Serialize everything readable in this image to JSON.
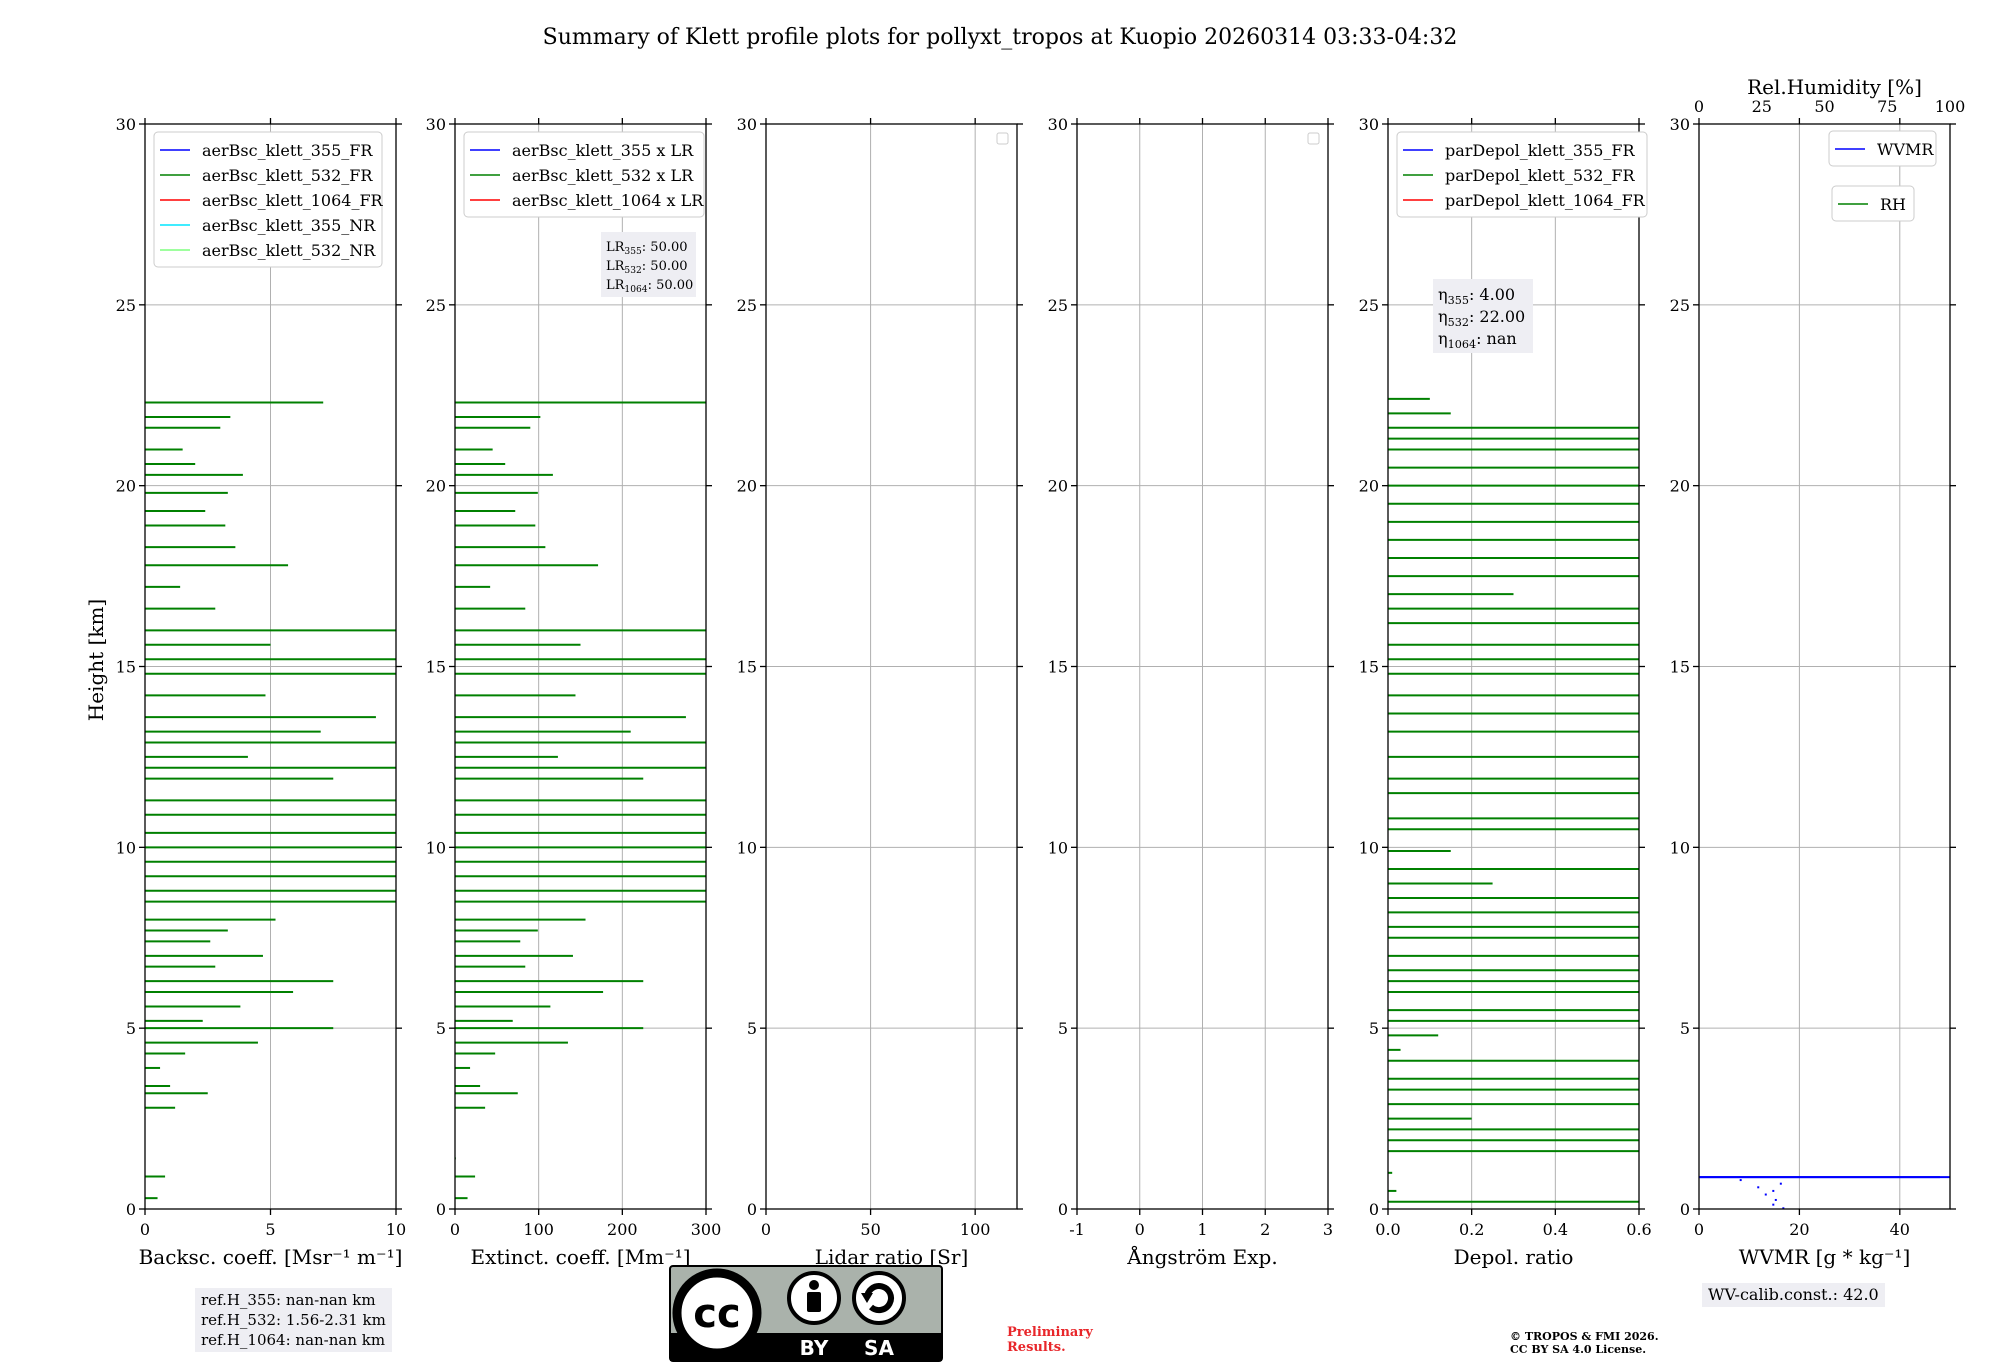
{
  "chart_data": {
    "type": "line",
    "title": "Summary of Klett profile plots for pollyxt_tropos at Kuopio 20260314 03:33-04:32",
    "ylabel": "Height [km]",
    "ylim": [
      0,
      30
    ],
    "yticks": [
      0,
      5,
      10,
      15,
      20,
      25,
      30
    ],
    "panels": [
      {
        "id": "bsc",
        "xlabel": "Backsc. coeff. [Msr⁻¹ m⁻¹]",
        "xlim": [
          0,
          10
        ],
        "xticks": [
          0,
          5,
          10
        ],
        "legend": [
          {
            "label": "aerBsc_klett_355_FR",
            "color": "#0000ff"
          },
          {
            "label": "aerBsc_klett_532_FR",
            "color": "#008000"
          },
          {
            "label": "aerBsc_klett_1064_FR",
            "color": "#ff0000"
          },
          {
            "label": "aerBsc_klett_355_NR",
            "color": "#00e5ff"
          },
          {
            "label": "aerBsc_klett_532_NR",
            "color": "#7fff7f"
          }
        ],
        "series": [
          {
            "name": "aerBsc_klett_532_FR",
            "color": "#008000",
            "profile": [
              [
                0.02,
                1.4
              ],
              [
                0.5,
                0.3
              ],
              [
                1.0,
                3.4
              ],
              [
                0.8,
                0.9
              ],
              [
                1.2,
                2.8
              ],
              [
                0.6,
                3.9
              ],
              [
                2.5,
                3.2
              ],
              [
                1.6,
                4.3
              ],
              [
                4.5,
                4.6
              ],
              [
                7.5,
                5.0
              ],
              [
                2.3,
                5.2
              ],
              [
                3.8,
                5.6
              ],
              [
                5.9,
                6.0
              ],
              [
                7.5,
                6.3
              ],
              [
                2.8,
                6.7
              ],
              [
                4.7,
                7.0
              ],
              [
                2.6,
                7.4
              ],
              [
                3.3,
                7.7
              ],
              [
                5.2,
                8.0
              ],
              [
                10,
                8.5
              ],
              [
                10,
                8.8
              ],
              [
                10,
                9.2
              ],
              [
                10,
                9.6
              ],
              [
                10,
                10.0
              ],
              [
                10,
                10.4
              ],
              [
                10,
                10.9
              ],
              [
                10,
                11.3
              ],
              [
                7.5,
                11.9
              ],
              [
                10,
                12.2
              ],
              [
                4.1,
                12.5
              ],
              [
                10,
                12.9
              ],
              [
                7.0,
                13.2
              ],
              [
                9.2,
                13.6
              ],
              [
                4.8,
                14.2
              ],
              [
                10,
                14.8
              ],
              [
                10,
                15.2
              ],
              [
                5.0,
                15.6
              ],
              [
                10,
                16.0
              ],
              [
                2.8,
                16.6
              ],
              [
                1.4,
                17.2
              ],
              [
                5.7,
                17.8
              ],
              [
                3.6,
                18.3
              ],
              [
                3.2,
                18.9
              ],
              [
                2.4,
                19.3
              ],
              [
                3.3,
                19.8
              ],
              [
                3.9,
                20.3
              ],
              [
                2.0,
                20.6
              ],
              [
                1.5,
                21.0
              ],
              [
                3.0,
                21.6
              ],
              [
                3.4,
                21.9
              ],
              [
                7.1,
                22.3
              ]
            ]
          }
        ],
        "refs": [
          "ref.H_355: nan-nan km",
          "ref.H_532: 1.56-2.31 km",
          "ref.H_1064: nan-nan km"
        ]
      },
      {
        "id": "ext",
        "xlabel": "Extinct. coeff. [Mm⁻¹]",
        "xlim": [
          0,
          300
        ],
        "xticks": [
          0,
          100,
          200,
          300
        ],
        "legend": [
          {
            "label": "aerBsc_klett_355 x LR",
            "color": "#0000ff"
          },
          {
            "label": "aerBsc_klett_532 x LR",
            "color": "#008000"
          },
          {
            "label": "aerBsc_klett_1064 x LR",
            "color": "#ff0000"
          }
        ],
        "lr_box": [
          "LR355: 50.00",
          "LR532: 50.00",
          "LR1064: 50.00"
        ],
        "series": [
          {
            "name": "aerBsc_klett_532 x LR",
            "color": "#008000",
            "profile": [
              [
                1,
                1.4
              ],
              [
                15,
                0.3
              ],
              [
                30,
                3.4
              ],
              [
                24,
                0.9
              ],
              [
                36,
                2.8
              ],
              [
                18,
                3.9
              ],
              [
                75,
                3.2
              ],
              [
                48,
                4.3
              ],
              [
                135,
                4.6
              ],
              [
                225,
                5.0
              ],
              [
                69,
                5.2
              ],
              [
                114,
                5.6
              ],
              [
                177,
                6.0
              ],
              [
                225,
                6.3
              ],
              [
                84,
                6.7
              ],
              [
                141,
                7.0
              ],
              [
                78,
                7.4
              ],
              [
                99,
                7.7
              ],
              [
                156,
                8.0
              ],
              [
                300,
                8.5
              ],
              [
                300,
                8.8
              ],
              [
                300,
                9.2
              ],
              [
                300,
                9.6
              ],
              [
                300,
                10.0
              ],
              [
                300,
                10.4
              ],
              [
                300,
                10.9
              ],
              [
                300,
                11.3
              ],
              [
                225,
                11.9
              ],
              [
                300,
                12.2
              ],
              [
                123,
                12.5
              ],
              [
                300,
                12.9
              ],
              [
                210,
                13.2
              ],
              [
                276,
                13.6
              ],
              [
                144,
                14.2
              ],
              [
                300,
                14.8
              ],
              [
                300,
                15.2
              ],
              [
                150,
                15.6
              ],
              [
                300,
                16.0
              ],
              [
                84,
                16.6
              ],
              [
                42,
                17.2
              ],
              [
                171,
                17.8
              ],
              [
                108,
                18.3
              ],
              [
                96,
                18.9
              ],
              [
                72,
                19.3
              ],
              [
                99,
                19.8
              ],
              [
                117,
                20.3
              ],
              [
                60,
                20.6
              ],
              [
                45,
                21.0
              ],
              [
                90,
                21.6
              ],
              [
                102,
                21.9
              ],
              [
                300,
                22.3
              ]
            ]
          }
        ]
      },
      {
        "id": "lr",
        "xlabel": "Lidar ratio [Sr]",
        "xlim": [
          0,
          120
        ],
        "xticks": [
          0,
          50,
          100
        ],
        "legend_empty": true,
        "series": []
      },
      {
        "id": "ang",
        "xlabel": "Ångström Exp.",
        "xlim": [
          -1,
          3
        ],
        "xticks": [
          -1,
          0,
          1,
          2,
          3
        ],
        "legend_empty": true,
        "series": []
      },
      {
        "id": "dep",
        "xlabel": "Depol. ratio",
        "xlim": [
          0,
          0.6
        ],
        "xticks": [
          0.0,
          0.2,
          0.4,
          0.6
        ],
        "legend": [
          {
            "label": "parDepol_klett_355_FR",
            "color": "#0000ff"
          },
          {
            "label": "parDepol_klett_532_FR",
            "color": "#008000"
          },
          {
            "label": "parDepol_klett_1064_FR",
            "color": "#ff0000"
          }
        ],
        "eta_box": [
          "η355: 4.00",
          "η532: 22.00",
          "η1064: nan"
        ],
        "series": [
          {
            "name": "parDepol_klett_532_FR",
            "color": "#008000",
            "profile": [
              [
                0.6,
                0.2
              ],
              [
                0.02,
                0.5
              ],
              [
                0.01,
                1.0
              ],
              [
                0.6,
                1.6
              ],
              [
                0.6,
                1.9
              ],
              [
                0.6,
                2.2
              ],
              [
                0.2,
                2.5
              ],
              [
                0.6,
                2.9
              ],
              [
                0.6,
                3.3
              ],
              [
                0.6,
                3.6
              ],
              [
                0.6,
                4.1
              ],
              [
                0.03,
                4.4
              ],
              [
                0.12,
                4.8
              ],
              [
                0.6,
                5.2
              ],
              [
                0.6,
                5.5
              ],
              [
                0.6,
                6.0
              ],
              [
                0.6,
                6.3
              ],
              [
                0.6,
                6.6
              ],
              [
                0.6,
                7.0
              ],
              [
                0.6,
                7.5
              ],
              [
                0.6,
                7.8
              ],
              [
                0.6,
                8.2
              ],
              [
                0.6,
                8.6
              ],
              [
                0.25,
                9.0
              ],
              [
                0.6,
                9.4
              ],
              [
                0.15,
                9.9
              ],
              [
                0.6,
                10.5
              ],
              [
                0.6,
                10.8
              ],
              [
                0.6,
                11.5
              ],
              [
                0.6,
                11.9
              ],
              [
                0.6,
                12.5
              ],
              [
                0.6,
                13.2
              ],
              [
                0.6,
                13.7
              ],
              [
                0.6,
                14.2
              ],
              [
                0.6,
                14.8
              ],
              [
                0.6,
                15.2
              ],
              [
                0.6,
                15.6
              ],
              [
                0.6,
                16.2
              ],
              [
                0.6,
                16.6
              ],
              [
                0.3,
                17.0
              ],
              [
                0.6,
                17.5
              ],
              [
                0.6,
                18.0
              ],
              [
                0.6,
                18.5
              ],
              [
                0.6,
                19.0
              ],
              [
                0.6,
                19.5
              ],
              [
                0.6,
                20.0
              ],
              [
                0.6,
                20.5
              ],
              [
                0.6,
                21.0
              ],
              [
                0.6,
                21.3
              ],
              [
                0.6,
                21.6
              ],
              [
                0.15,
                22.0
              ],
              [
                0.1,
                22.4
              ]
            ]
          }
        ]
      },
      {
        "id": "wv",
        "xlabel": "WVMR [g * kg⁻¹]",
        "xlim": [
          0,
          50
        ],
        "xticks": [
          0,
          20,
          40
        ],
        "top_xlabel": "Rel.Humidity [%]",
        "top_xlim": [
          0,
          100
        ],
        "top_xticks": [
          0,
          25,
          50,
          75,
          100
        ],
        "legend_wvmr": {
          "label": "WVMR",
          "color": "#0000ff"
        },
        "legend_rh": {
          "label": "RH",
          "color": "#008000"
        },
        "series": [
          {
            "name": "WVMR",
            "color": "#0000ff",
            "profile": [
              [
                17,
                0.02
              ],
              [
                15,
                0.12
              ],
              [
                15.5,
                0.25
              ],
              [
                13.5,
                0.4
              ],
              [
                15,
                0.5
              ],
              [
                12,
                0.6
              ],
              [
                16.5,
                0.7
              ],
              [
                8.5,
                0.8
              ]
            ]
          },
          {
            "name": "WVMR-offscale",
            "color": "#0000ff",
            "profile": [
              [
                48,
                0.88
              ],
              [
                50,
                0.88
              ]
            ]
          }
        ],
        "calib": "WV-calib.const.: 42.0"
      }
    ]
  },
  "badge": {
    "cc": "cc",
    "by": "BY",
    "sa": "SA"
  },
  "preliminary": "Preliminary Results.",
  "copyright_line1": "© TROPOS & FMI 2026.",
  "copyright_line2": "CC BY SA 4.0 License."
}
